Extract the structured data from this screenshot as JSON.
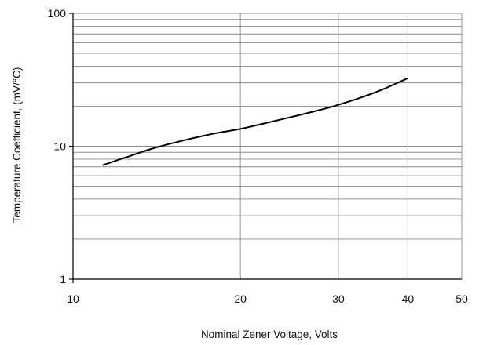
{
  "chart_data": {
    "type": "line",
    "title": "",
    "xlabel": "Nominal Zener Voltage, Volts",
    "ylabel": "Temperature Coefficient, (mV/°C)",
    "x_scale": "log",
    "y_scale": "log",
    "xlim": [
      10,
      50
    ],
    "ylim": [
      1,
      100
    ],
    "x_ticks": [
      "10",
      "20",
      "30",
      "40",
      "50"
    ],
    "y_ticks": [
      "1",
      "10",
      "100"
    ],
    "grid": true,
    "legend": "none",
    "series": [
      {
        "color": "#000000",
        "x": [
          11.3,
          12.5,
          14,
          16,
          18,
          20,
          22,
          25,
          28,
          30,
          33,
          36,
          40
        ],
        "y": [
          7.2,
          8.3,
          9.7,
          11.2,
          12.5,
          13.5,
          14.8,
          16.8,
          18.9,
          20.5,
          23.3,
          26.7,
          32.5
        ]
      }
    ]
  }
}
